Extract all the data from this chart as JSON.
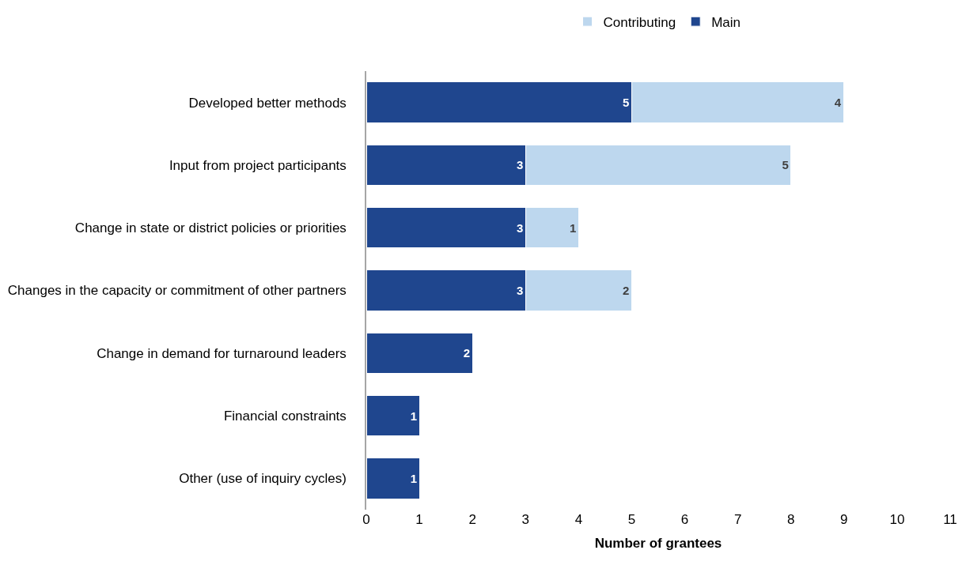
{
  "chart_data": {
    "type": "bar",
    "orientation": "horizontal",
    "stacked": true,
    "xlabel": "Number of grantees",
    "categories": [
      "Developed better methods",
      "Input from project participants",
      "Change in state or district policies or priorities",
      "Changes in the capacity or commitment of other partners",
      "Change in demand for turnaround leaders",
      "Financial constraints",
      "Other (use of inquiry cycles)"
    ],
    "series": [
      {
        "name": "Main",
        "color": "#1f468e",
        "values": [
          5,
          3,
          3,
          3,
          2,
          1,
          1
        ]
      },
      {
        "name": "Contributing",
        "color": "#bdd7ee",
        "values": [
          4,
          5,
          1,
          2,
          null,
          null,
          null
        ]
      }
    ],
    "xlim": [
      0,
      11
    ],
    "xticks": [
      0,
      1,
      2,
      3,
      4,
      5,
      6,
      7,
      8,
      9,
      10,
      11
    ],
    "data_labels": true,
    "legend": "top",
    "grid": false
  }
}
